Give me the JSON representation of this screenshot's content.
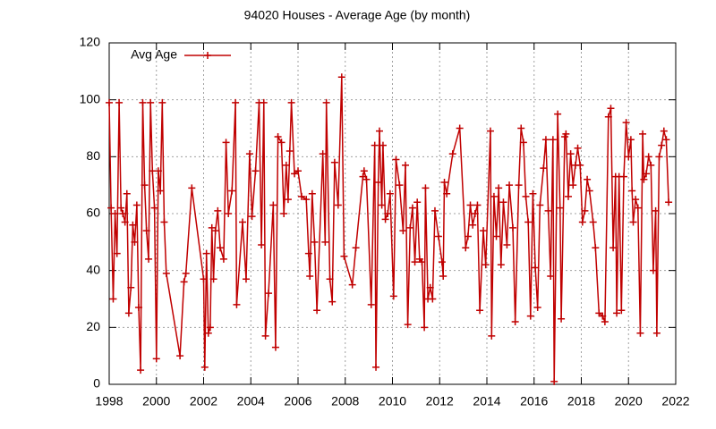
{
  "chart_data": {
    "type": "line",
    "title": "94020 Houses - Average Age (by month)",
    "x": [
      1998.0,
      1998.08,
      1998.17,
      1998.25,
      1998.33,
      1998.42,
      1998.5,
      1998.58,
      1998.67,
      1998.75,
      1998.83,
      1998.92,
      1999.0,
      1999.08,
      1999.17,
      1999.25,
      1999.33,
      1999.42,
      1999.5,
      1999.58,
      1999.67,
      1999.75,
      1999.83,
      1999.92,
      2000.0,
      2000.08,
      2000.17,
      2000.25,
      2000.33,
      2000.42,
      2001.0,
      2001.17,
      2001.25,
      2001.5,
      2002.0,
      2002.05,
      2002.12,
      2002.2,
      2002.28,
      2002.35,
      2002.42,
      2002.5,
      2002.6,
      2002.7,
      2002.85,
      2002.95,
      2003.05,
      2003.2,
      2003.35,
      2003.4,
      2003.65,
      2003.8,
      2003.95,
      2004.05,
      2004.2,
      2004.35,
      2004.45,
      2004.55,
      2004.62,
      2004.75,
      2004.95,
      2005.05,
      2005.15,
      2005.3,
      2005.4,
      2005.5,
      2005.58,
      2005.65,
      2005.72,
      2005.85,
      2006.0,
      2006.15,
      2006.35,
      2006.45,
      2006.5,
      2006.6,
      2006.7,
      2006.8,
      2007.05,
      2007.15,
      2007.2,
      2007.35,
      2007.45,
      2007.55,
      2007.7,
      2007.85,
      2007.95,
      2008.3,
      2008.45,
      2008.75,
      2008.8,
      2008.9,
      2009.1,
      2009.25,
      2009.3,
      2009.4,
      2009.45,
      2009.55,
      2009.6,
      2009.7,
      2009.8,
      2009.9,
      2010.05,
      2010.15,
      2010.3,
      2010.45,
      2010.55,
      2010.65,
      2010.75,
      2010.85,
      2010.95,
      2011.05,
      2011.15,
      2011.25,
      2011.35,
      2011.4,
      2011.5,
      2011.6,
      2011.7,
      2011.8,
      2011.95,
      2012.1,
      2012.15,
      2012.2,
      2012.3,
      2012.55,
      2012.85,
      2013.1,
      2013.2,
      2013.3,
      2013.4,
      2013.5,
      2013.6,
      2013.7,
      2013.85,
      2013.95,
      2014.15,
      2014.2,
      2014.3,
      2014.4,
      2014.5,
      2014.6,
      2014.7,
      2014.85,
      2014.95,
      2015.1,
      2015.2,
      2015.35,
      2015.45,
      2015.55,
      2015.65,
      2015.75,
      2015.85,
      2015.95,
      2016.05,
      2016.15,
      2016.25,
      2016.4,
      2016.5,
      2016.6,
      2016.7,
      2016.8,
      2016.85,
      2017.0,
      2017.1,
      2017.15,
      2017.3,
      2017.35,
      2017.45,
      2017.55,
      2017.65,
      2017.75,
      2017.85,
      2017.95,
      2018.05,
      2018.15,
      2018.25,
      2018.35,
      2018.5,
      2018.6,
      2018.75,
      2018.9,
      2019.0,
      2019.15,
      2019.25,
      2019.35,
      2019.45,
      2019.5,
      2019.6,
      2019.7,
      2019.8,
      2019.9,
      2020.0,
      2020.1,
      2020.15,
      2020.2,
      2020.3,
      2020.4,
      2020.5,
      2020.6,
      2020.65,
      2020.75,
      2020.85,
      2020.95,
      2021.05,
      2021.15,
      2021.2,
      2021.3,
      2021.4,
      2021.5,
      2021.6,
      2021.7
    ],
    "series": [
      {
        "name": "Avg Age",
        "color": "#c00000",
        "values": [
          99,
          62,
          30,
          60,
          46,
          99,
          62,
          60,
          57,
          67,
          25,
          34,
          56,
          50,
          63,
          27,
          5,
          99,
          70,
          54,
          44,
          99,
          75,
          62,
          9,
          75,
          68,
          99,
          57,
          39,
          10,
          36,
          39,
          69,
          37,
          6,
          46,
          18,
          20,
          55,
          37,
          54,
          61,
          48,
          44,
          85,
          60,
          68,
          99,
          28,
          57,
          37,
          81,
          59,
          75,
          99,
          49,
          99,
          17,
          32,
          63,
          13,
          87,
          85,
          60,
          77,
          65,
          82,
          99,
          74,
          75,
          66,
          65,
          46,
          38,
          67,
          50,
          26,
          81,
          50,
          99,
          37,
          29,
          78,
          63,
          108,
          45,
          35,
          48,
          73,
          75,
          72,
          28,
          84,
          6,
          71,
          89,
          63,
          84,
          58,
          60,
          67,
          31,
          79,
          70,
          54,
          77,
          21,
          55,
          62,
          43,
          64,
          44,
          43,
          20,
          69,
          30,
          34,
          30,
          61,
          52,
          43,
          38,
          71,
          67,
          81,
          90,
          48,
          52,
          63,
          56,
          60,
          63,
          26,
          54,
          42,
          89,
          17,
          66,
          52,
          69,
          42,
          64,
          49,
          70,
          55,
          22,
          70,
          90,
          85,
          66,
          57,
          24,
          67,
          41,
          27,
          63,
          76,
          86,
          61,
          38,
          86,
          1,
          95,
          62,
          23,
          87,
          88,
          66,
          81,
          70,
          77,
          83,
          77,
          57,
          61,
          72,
          68,
          57,
          48,
          25,
          24,
          22,
          94,
          97,
          48,
          73,
          25,
          73,
          26,
          73,
          92,
          80,
          86,
          68,
          57,
          65,
          62,
          18,
          88,
          72,
          74,
          80,
          77,
          40,
          61,
          18,
          80,
          84,
          89,
          86,
          64
        ]
      }
    ],
    "xlim": [
      1998,
      2022
    ],
    "xticks": [
      1998,
      2000,
      2002,
      2004,
      2006,
      2008,
      2010,
      2012,
      2014,
      2016,
      2018,
      2020,
      2022
    ],
    "ylim": [
      0,
      120
    ],
    "yticks": [
      0,
      20,
      40,
      60,
      80,
      100,
      120
    ],
    "grid": true,
    "legend": "top-left"
  }
}
